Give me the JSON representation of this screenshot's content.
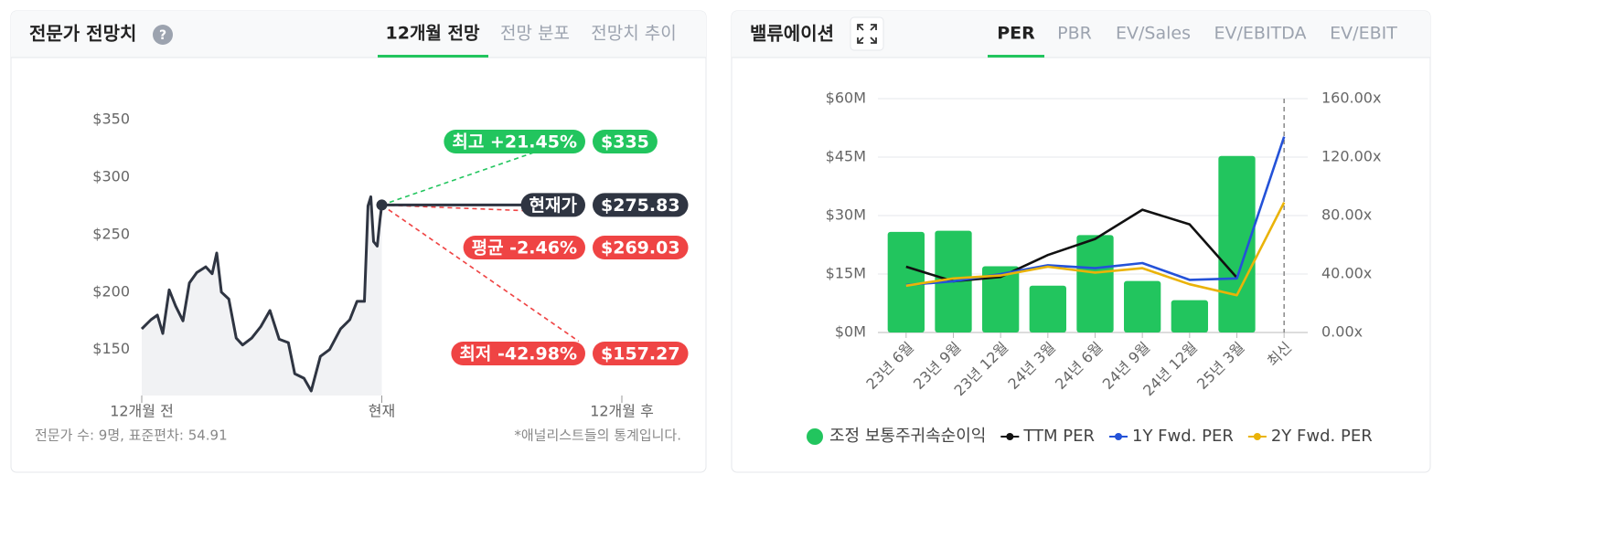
{
  "left_panel": {
    "title": "전문가 전망치",
    "help_icon": "?",
    "tabs": [
      "12개월 전망",
      "전망 분포",
      "전망치 추이"
    ],
    "active_tab": 0,
    "footer_left": "전문가 수: 9명, 표준편차: 54.91",
    "footer_right": "*애널리스트들의 통계입니다."
  },
  "right_panel": {
    "title": "밸류에이션",
    "tabs": [
      "PER",
      "PBR",
      "EV/Sales",
      "EV/EBITDA",
      "EV/EBIT"
    ],
    "active_tab": 0
  },
  "chart_data": [
    {
      "type": "price-forecast",
      "color": "#2f3542",
      "x": [
        -12,
        -11.54,
        -11.22,
        -10.95,
        -10.63,
        -10.31,
        -9.94,
        -9.62,
        -9.25,
        -8.8,
        -8.48,
        -8.25,
        -8.02,
        -7.65,
        -7.28,
        -6.96,
        -6.5,
        -6.05,
        -5.59,
        -5.13,
        -4.67,
        -4.35,
        -3.89,
        -3.53,
        -3.07,
        -2.61,
        -2.06,
        -1.6,
        -1.24,
        -0.87,
        -0.69,
        -0.55,
        -0.41,
        -0.23,
        -0.09,
        0
      ],
      "values": [
        168,
        176,
        180,
        164,
        202,
        188,
        175,
        208,
        217,
        222,
        216,
        234,
        200,
        194,
        160,
        154,
        160,
        170,
        184,
        159,
        156,
        129,
        125,
        114,
        144,
        150,
        168,
        176,
        192,
        192,
        275,
        283,
        244,
        240,
        263,
        275.83
      ],
      "xlim": [
        -12,
        12
      ],
      "xticks": [
        {
          "value": -12,
          "label": "12개월 전"
        },
        {
          "value": 0,
          "label": "현재"
        },
        {
          "value": 12,
          "label": "12개월 후"
        }
      ],
      "ylim": [
        110,
        370
      ],
      "yticks": [
        {
          "value": 150,
          "label": "$150"
        },
        {
          "value": 200,
          "label": "$200"
        },
        {
          "value": 250,
          "label": "$250"
        },
        {
          "value": 300,
          "label": "$300"
        },
        {
          "value": 350,
          "label": "$350"
        }
      ],
      "current": {
        "label": "현재가",
        "value": 275.83,
        "value_label": "$275.83"
      },
      "targets": [
        {
          "label": "최고 +21.45%",
          "value": 335,
          "value_label": "$335",
          "color": "#22c55e"
        },
        {
          "label": "평균 -2.46%",
          "value": 269.03,
          "value_label": "$269.03",
          "color": "#ef4444"
        },
        {
          "label": "최저 -42.98%",
          "value": 157.27,
          "value_label": "$157.27",
          "color": "#ef4444"
        }
      ]
    },
    {
      "type": "bar-line",
      "categories": [
        "23년 6월",
        "23년 9월",
        "23년 12월",
        "24년 3월",
        "24년 6월",
        "24년 9월",
        "24년 12월",
        "25년 3월",
        "최신"
      ],
      "ylim": [
        0,
        60
      ],
      "yticks": [
        {
          "value": 0,
          "label": "$0M"
        },
        {
          "value": 15,
          "label": "$15M"
        },
        {
          "value": 30,
          "label": "$30M"
        },
        {
          "value": 45,
          "label": "$45M"
        },
        {
          "value": 60,
          "label": "$60M"
        }
      ],
      "y2lim": [
        0,
        160
      ],
      "y2ticks": [
        {
          "value": 0,
          "label": "0.00x"
        },
        {
          "value": 40,
          "label": "40.00x"
        },
        {
          "value": 80,
          "label": "80.00x"
        },
        {
          "value": 120,
          "label": "120.00x"
        },
        {
          "value": 160,
          "label": "160.00x"
        }
      ],
      "grid": true,
      "series": [
        {
          "name": "조정 보통주귀속순이익",
          "type": "bar",
          "color": "#22c55e",
          "values": [
            25.8,
            26.1,
            17,
            12,
            25,
            13.2,
            8.3,
            45.3,
            null
          ]
        },
        {
          "name": "TTM PER",
          "type": "line",
          "axis": "y2",
          "color": "#111111",
          "values": [
            45,
            35,
            38,
            53,
            64,
            84,
            74,
            37.5,
            null
          ]
        },
        {
          "name": "1Y Fwd. PER",
          "type": "line",
          "axis": "y2",
          "color": "#2452d8",
          "values": [
            32.5,
            35,
            40,
            46,
            44,
            47.5,
            36,
            37,
            134
          ]
        },
        {
          "name": "2Y Fwd. PER",
          "type": "line",
          "axis": "y2",
          "color": "#eab308",
          "values": [
            32,
            37,
            39,
            45,
            41,
            44,
            33,
            25.5,
            89
          ]
        }
      ]
    }
  ]
}
